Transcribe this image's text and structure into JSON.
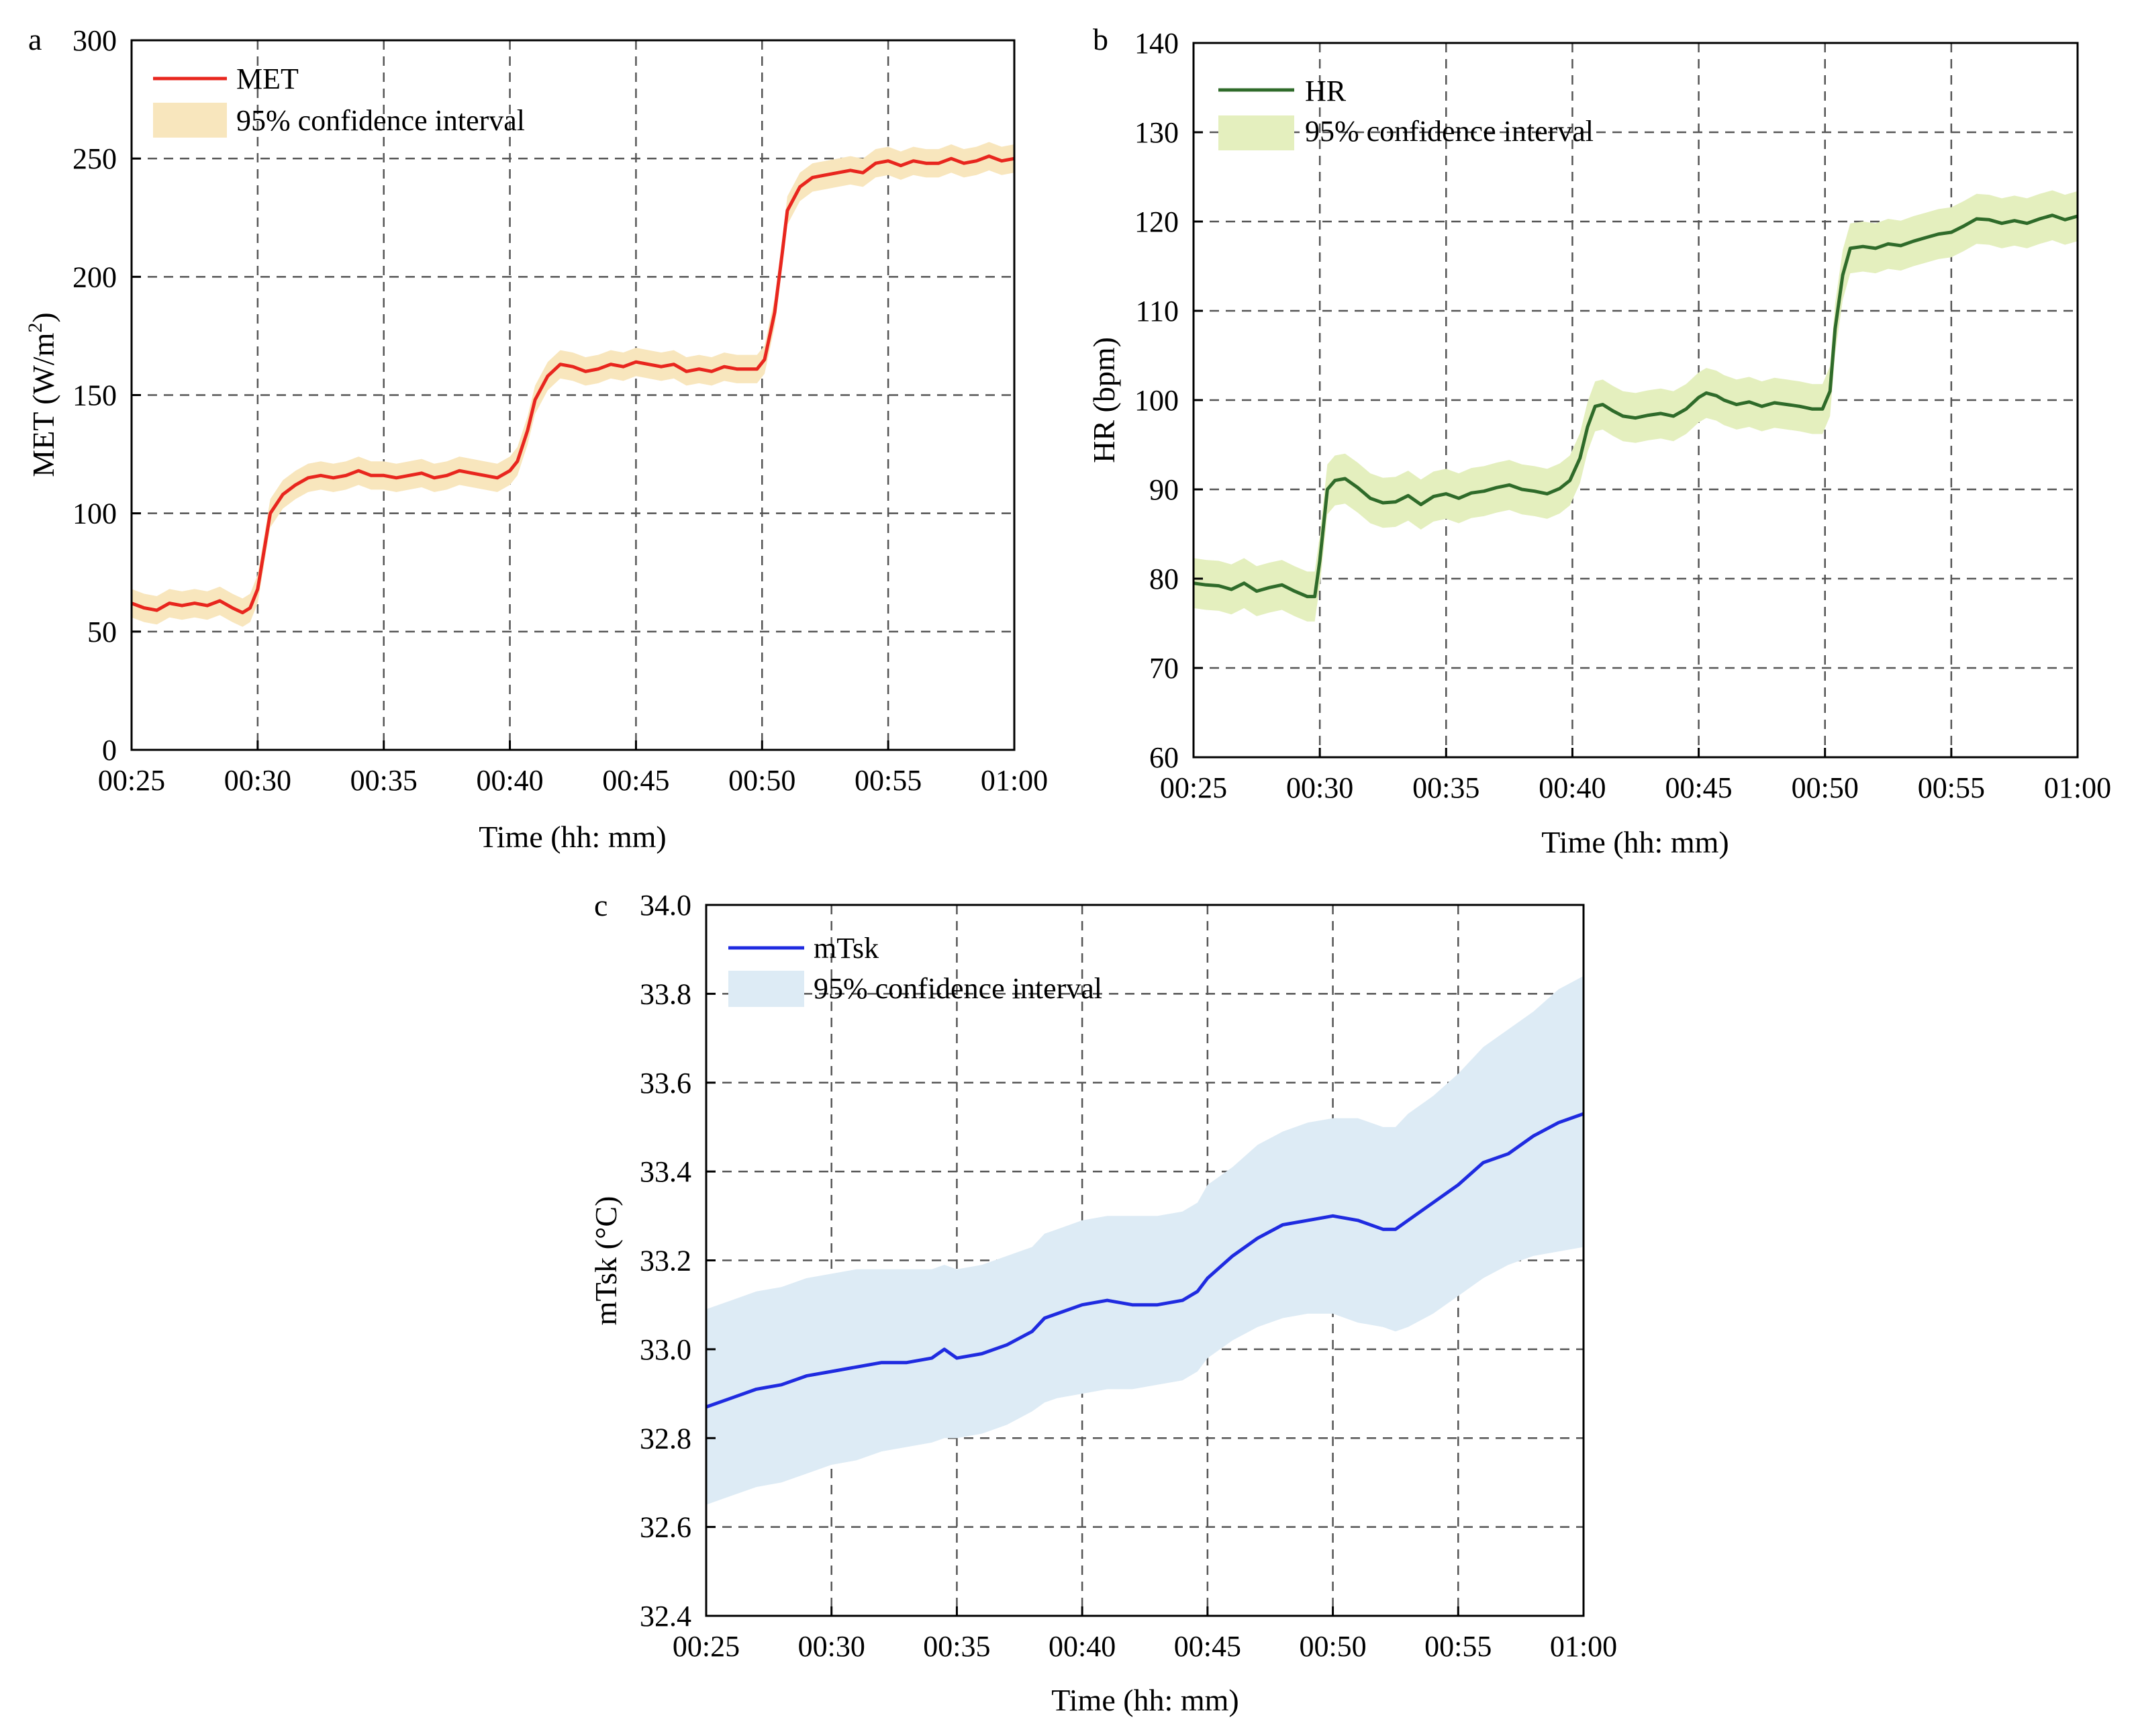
{
  "figure": {
    "panels": [
      "a",
      "b",
      "c"
    ]
  },
  "chart_data": [
    {
      "id": "a",
      "panel_label": "a",
      "type": "line",
      "title": "",
      "xlabel": "Time (hh: mm)",
      "ylabel_main": "MET (W/m",
      "ylabel_sup": "2",
      "ylabel_end": ")",
      "ylabel": "MET (W/m2)",
      "xlim": [
        25,
        60
      ],
      "ylim": [
        0,
        300
      ],
      "x_ticks": [
        25,
        30,
        35,
        40,
        45,
        50,
        55,
        60
      ],
      "x_tick_labels": [
        "00:25",
        "00:30",
        "00:35",
        "00:40",
        "00:45",
        "00:50",
        "00:55",
        "01:00"
      ],
      "y_ticks": [
        0,
        50,
        100,
        150,
        200,
        250,
        300
      ],
      "y_tick_labels": [
        "0",
        "50",
        "100",
        "150",
        "200",
        "250",
        "300"
      ],
      "grid": true,
      "legend_position": "top-left",
      "legend": [
        "MET",
        "95% confidence interval"
      ],
      "line_color": "#e8261e",
      "band_color": "#f8e6bd",
      "series": [
        {
          "name": "MET",
          "x": [
            25,
            25.5,
            26,
            26.5,
            27,
            27.5,
            28,
            28.5,
            29,
            29.4,
            29.7,
            30,
            30.5,
            31,
            31.5,
            32,
            32.5,
            33,
            33.5,
            34,
            34.5,
            35,
            35.5,
            36,
            36.5,
            37,
            37.5,
            38,
            38.5,
            39,
            39.5,
            40,
            40.3,
            40.7,
            41,
            41.5,
            42,
            42.5,
            43,
            43.5,
            44,
            44.5,
            45,
            45.5,
            46,
            46.5,
            47,
            47.5,
            48,
            48.5,
            49,
            49.5,
            49.8,
            50.1,
            50.5,
            50.8,
            51,
            51.5,
            52,
            52.5,
            53,
            53.5,
            54,
            54.5,
            55,
            55.5,
            56,
            56.5,
            57,
            57.5,
            58,
            58.5,
            59,
            59.5,
            60
          ],
          "y": [
            62,
            60,
            59,
            62,
            61,
            62,
            61,
            63,
            60,
            58,
            60,
            68,
            100,
            108,
            112,
            115,
            116,
            115,
            116,
            118,
            116,
            116,
            115,
            116,
            117,
            115,
            116,
            118,
            117,
            116,
            115,
            118,
            122,
            135,
            148,
            158,
            163,
            162,
            160,
            161,
            163,
            162,
            164,
            163,
            162,
            163,
            160,
            161,
            160,
            162,
            161,
            161,
            161,
            165,
            185,
            210,
            228,
            238,
            242,
            243,
            244,
            245,
            244,
            248,
            249,
            247,
            249,
            248,
            248,
            250,
            248,
            249,
            251,
            249,
            250
          ],
          "ci_halfwidth": 6
        }
      ]
    },
    {
      "id": "b",
      "panel_label": "b",
      "type": "line",
      "title": "",
      "xlabel": "Time (hh: mm)",
      "ylabel": "HR (bpm)",
      "xlim": [
        25,
        60
      ],
      "ylim": [
        60,
        140
      ],
      "x_ticks": [
        25,
        30,
        35,
        40,
        45,
        50,
        55,
        60
      ],
      "x_tick_labels": [
        "00:25",
        "00:30",
        "00:35",
        "00:40",
        "00:45",
        "00:50",
        "00:55",
        "01:00"
      ],
      "y_ticks": [
        60,
        70,
        80,
        90,
        100,
        110,
        120,
        130,
        140
      ],
      "y_tick_labels": [
        "60",
        "70",
        "80",
        "90",
        "100",
        "110",
        "120",
        "130",
        "140"
      ],
      "grid": true,
      "legend_position": "top-left",
      "legend": [
        "HR",
        "95% confidence interval"
      ],
      "line_color": "#2f6b2a",
      "band_color": "#e4efbe",
      "series": [
        {
          "name": "HR",
          "x": [
            25,
            25.5,
            26,
            26.5,
            27,
            27.5,
            28,
            28.5,
            29,
            29.5,
            29.8,
            30,
            30.3,
            30.6,
            31,
            31.5,
            32,
            32.5,
            33,
            33.5,
            34,
            34.5,
            35,
            35.5,
            36,
            36.5,
            37,
            37.5,
            38,
            38.5,
            39,
            39.5,
            39.9,
            40.3,
            40.6,
            40.9,
            41.2,
            41.6,
            42,
            42.5,
            43,
            43.5,
            44,
            44.5,
            45,
            45.3,
            45.7,
            46,
            46.5,
            47,
            47.5,
            48,
            48.5,
            49,
            49.5,
            49.9,
            50.2,
            50.4,
            50.7,
            51,
            51.5,
            52,
            52.5,
            53,
            53.5,
            54,
            54.5,
            55,
            55.5,
            56,
            56.5,
            57,
            57.5,
            58,
            58.5,
            59,
            59.5,
            60
          ],
          "y": [
            79.5,
            79.3,
            79.2,
            78.8,
            79.5,
            78.6,
            79.0,
            79.3,
            78.6,
            78.0,
            78.0,
            82.0,
            90.0,
            91.0,
            91.2,
            90.2,
            89.0,
            88.5,
            88.6,
            89.3,
            88.3,
            89.2,
            89.5,
            89.0,
            89.6,
            89.8,
            90.2,
            90.5,
            90.0,
            89.8,
            89.5,
            90.1,
            91.0,
            93.5,
            97.0,
            99.3,
            99.5,
            98.8,
            98.2,
            98.0,
            98.3,
            98.5,
            98.2,
            99.0,
            100.3,
            100.8,
            100.5,
            100.0,
            99.5,
            99.8,
            99.3,
            99.7,
            99.5,
            99.3,
            99.0,
            99.0,
            101.0,
            108.0,
            114.0,
            117.0,
            117.2,
            117.0,
            117.5,
            117.3,
            117.8,
            118.2,
            118.6,
            118.8,
            119.5,
            120.3,
            120.2,
            119.8,
            120.1,
            119.8,
            120.3,
            120.7,
            120.2,
            120.6
          ],
          "ci_halfwidth": 2.8
        }
      ]
    },
    {
      "id": "c",
      "panel_label": "c",
      "type": "line",
      "title": "",
      "xlabel": "Time (hh: mm)",
      "ylabel": "mTsk (°C)",
      "xlim": [
        25,
        60
      ],
      "ylim": [
        32.4,
        34.0
      ],
      "x_ticks": [
        25,
        30,
        35,
        40,
        45,
        50,
        55,
        60
      ],
      "x_tick_labels": [
        "00:25",
        "00:30",
        "00:35",
        "00:40",
        "00:45",
        "00:50",
        "00:55",
        "01:00"
      ],
      "y_ticks": [
        32.4,
        32.6,
        32.8,
        33.0,
        33.2,
        33.4,
        33.6,
        33.8,
        34.0
      ],
      "y_tick_labels": [
        "32.4",
        "32.6",
        "32.8",
        "33.0",
        "33.2",
        "33.4",
        "33.6",
        "33.8",
        "34.0"
      ],
      "grid": true,
      "legend_position": "top-left",
      "legend": [
        "mTsk",
        "95% confidence interval"
      ],
      "line_color": "#1f2be0",
      "band_color": "#ddebf5",
      "series": [
        {
          "name": "mTsk",
          "x": [
            25,
            26,
            27,
            28,
            29,
            30,
            31,
            32,
            33,
            34,
            34.5,
            35,
            36,
            37,
            38,
            38.5,
            39,
            40,
            41,
            42,
            43,
            44,
            44.6,
            45,
            46,
            47,
            48,
            49,
            50,
            51,
            52,
            52.5,
            53,
            54,
            55,
            56,
            57,
            58,
            59,
            60
          ],
          "y": [
            32.87,
            32.89,
            32.91,
            32.92,
            32.94,
            32.95,
            32.96,
            32.97,
            32.97,
            32.98,
            33.0,
            32.98,
            32.99,
            33.01,
            33.04,
            33.07,
            33.08,
            33.1,
            33.11,
            33.1,
            33.1,
            33.11,
            33.13,
            33.16,
            33.21,
            33.25,
            33.28,
            33.29,
            33.3,
            33.29,
            33.27,
            33.27,
            33.29,
            33.33,
            33.37,
            33.42,
            33.44,
            33.48,
            33.51,
            33.53
          ],
          "ci_low": [
            32.65,
            32.67,
            32.69,
            32.7,
            32.72,
            32.74,
            32.75,
            32.77,
            32.78,
            32.79,
            32.8,
            32.8,
            32.81,
            32.83,
            32.86,
            32.88,
            32.89,
            32.9,
            32.91,
            32.91,
            32.92,
            32.93,
            32.95,
            32.98,
            33.02,
            33.05,
            33.07,
            33.08,
            33.08,
            33.06,
            33.05,
            33.04,
            33.05,
            33.08,
            33.12,
            33.16,
            33.19,
            33.21,
            33.22,
            33.23
          ],
          "ci_high": [
            33.09,
            33.11,
            33.13,
            33.14,
            33.16,
            33.17,
            33.18,
            33.18,
            33.18,
            33.18,
            33.19,
            33.18,
            33.19,
            33.21,
            33.23,
            33.26,
            33.27,
            33.29,
            33.3,
            33.3,
            33.3,
            33.31,
            33.33,
            33.37,
            33.41,
            33.46,
            33.49,
            33.51,
            33.52,
            33.52,
            33.5,
            33.5,
            33.53,
            33.57,
            33.62,
            33.68,
            33.72,
            33.76,
            33.81,
            33.84
          ]
        }
      ]
    }
  ]
}
